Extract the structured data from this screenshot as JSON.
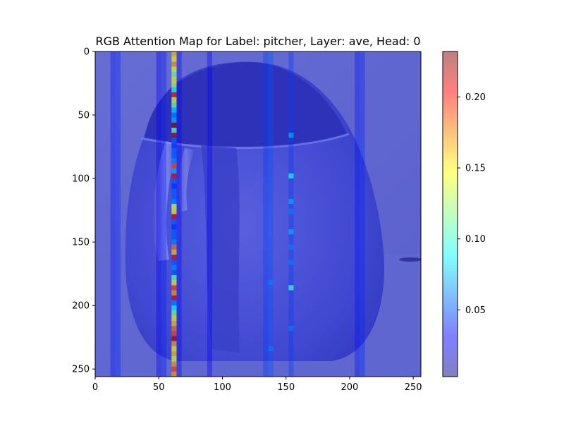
{
  "chart_data": {
    "type": "heatmap",
    "title": "RGB Attention Map for Label: pitcher, Layer: ave, Head: 0",
    "xlabel": "",
    "ylabel": "",
    "xlim": [
      0,
      256
    ],
    "ylim": [
      256,
      0
    ],
    "x_ticks": [
      0,
      50,
      100,
      150,
      200,
      250
    ],
    "y_ticks": [
      0,
      50,
      100,
      150,
      200,
      250
    ],
    "colorbar": {
      "cmap": "jet",
      "alpha": 0.5,
      "range": [
        0.003,
        0.232
      ],
      "ticks": [
        0.05,
        0.1,
        0.15,
        0.2
      ],
      "tick_labels": [
        "0.05",
        "0.10",
        "0.15",
        "0.20"
      ]
    },
    "background_image": "pitcher",
    "attention": {
      "cell_size": 4,
      "base_value": 0.02,
      "columns": [
        {
          "x": 12,
          "value": 0.035
        },
        {
          "x": 16,
          "value": 0.04
        },
        {
          "x": 48,
          "value": 0.028
        },
        {
          "x": 52,
          "value": 0.038
        },
        {
          "x": 64,
          "value": 0.032
        },
        {
          "x": 88,
          "value": 0.03
        },
        {
          "x": 132,
          "value": 0.045
        },
        {
          "x": 136,
          "value": 0.05
        },
        {
          "x": 152,
          "value": 0.045
        },
        {
          "x": 204,
          "value": 0.035
        },
        {
          "x": 208,
          "value": 0.04
        }
      ],
      "hot_column": {
        "x": 60,
        "cells": [
          {
            "y": 0,
            "v": 0.16
          },
          {
            "y": 4,
            "v": 0.15
          },
          {
            "y": 8,
            "v": 0.17
          },
          {
            "y": 12,
            "v": 0.14
          },
          {
            "y": 16,
            "v": 0.12
          },
          {
            "y": 20,
            "v": 0.15
          },
          {
            "y": 24,
            "v": 0.13
          },
          {
            "y": 28,
            "v": 0.1
          },
          {
            "y": 32,
            "v": 0.2
          },
          {
            "y": 36,
            "v": 0.14
          },
          {
            "y": 40,
            "v": 0.12
          },
          {
            "y": 44,
            "v": 0.08
          },
          {
            "y": 48,
            "v": 0.06
          },
          {
            "y": 52,
            "v": 0.07
          },
          {
            "y": 56,
            "v": 0.23
          },
          {
            "y": 60,
            "v": 0.11
          },
          {
            "y": 64,
            "v": 0.22
          },
          {
            "y": 68,
            "v": 0.05
          },
          {
            "y": 72,
            "v": 0.04
          },
          {
            "y": 76,
            "v": 0.05
          },
          {
            "y": 80,
            "v": 0.05
          },
          {
            "y": 84,
            "v": 0.06
          },
          {
            "y": 88,
            "v": 0.19
          },
          {
            "y": 92,
            "v": 0.07
          },
          {
            "y": 96,
            "v": 0.21
          },
          {
            "y": 100,
            "v": 0.05
          },
          {
            "y": 104,
            "v": 0.04
          },
          {
            "y": 108,
            "v": 0.05
          },
          {
            "y": 112,
            "v": 0.05
          },
          {
            "y": 116,
            "v": 0.06
          },
          {
            "y": 120,
            "v": 0.14
          },
          {
            "y": 124,
            "v": 0.15
          },
          {
            "y": 128,
            "v": 0.21
          },
          {
            "y": 132,
            "v": 0.05
          },
          {
            "y": 136,
            "v": 0.04
          },
          {
            "y": 140,
            "v": 0.05
          },
          {
            "y": 144,
            "v": 0.05
          },
          {
            "y": 148,
            "v": 0.06
          },
          {
            "y": 152,
            "v": 0.18
          },
          {
            "y": 156,
            "v": 0.16
          },
          {
            "y": 160,
            "v": 0.21
          },
          {
            "y": 164,
            "v": 0.05
          },
          {
            "y": 168,
            "v": 0.06
          },
          {
            "y": 172,
            "v": 0.05
          },
          {
            "y": 176,
            "v": 0.11
          },
          {
            "y": 180,
            "v": 0.15
          },
          {
            "y": 184,
            "v": 0.19
          },
          {
            "y": 188,
            "v": 0.17
          },
          {
            "y": 192,
            "v": 0.21
          },
          {
            "y": 196,
            "v": 0.06
          },
          {
            "y": 200,
            "v": 0.09
          },
          {
            "y": 204,
            "v": 0.12
          },
          {
            "y": 208,
            "v": 0.15
          },
          {
            "y": 212,
            "v": 0.16
          },
          {
            "y": 216,
            "v": 0.18
          },
          {
            "y": 220,
            "v": 0.19
          },
          {
            "y": 224,
            "v": 0.22
          },
          {
            "y": 228,
            "v": 0.17
          },
          {
            "y": 232,
            "v": 0.15
          },
          {
            "y": 236,
            "v": 0.16
          },
          {
            "y": 240,
            "v": 0.14
          },
          {
            "y": 244,
            "v": 0.17
          },
          {
            "y": 248,
            "v": 0.19
          },
          {
            "y": 252,
            "v": 0.17
          }
        ]
      },
      "sparse_cells": [
        {
          "x": 152,
          "y": 64,
          "v": 0.07
        },
        {
          "x": 152,
          "y": 96,
          "v": 0.09
        },
        {
          "x": 152,
          "y": 116,
          "v": 0.07
        },
        {
          "x": 152,
          "y": 124,
          "v": 0.06
        },
        {
          "x": 152,
          "y": 140,
          "v": 0.07
        },
        {
          "x": 152,
          "y": 152,
          "v": 0.06
        },
        {
          "x": 152,
          "y": 164,
          "v": 0.06
        },
        {
          "x": 152,
          "y": 184,
          "v": 0.1
        },
        {
          "x": 152,
          "y": 216,
          "v": 0.06
        },
        {
          "x": 136,
          "y": 180,
          "v": 0.06
        },
        {
          "x": 136,
          "y": 232,
          "v": 0.06
        }
      ]
    }
  }
}
